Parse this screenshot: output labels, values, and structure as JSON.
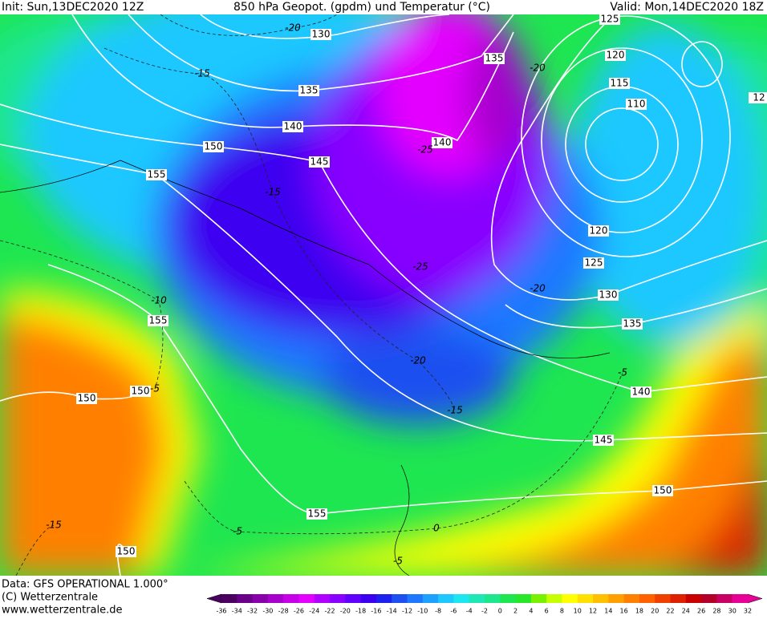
{
  "header": {
    "init": "Init: Sun,13DEC2020 12Z",
    "title": "850 hPa Geopot. (gpdm) und Temperatur (°C)",
    "valid": "Valid: Mon,14DEC2020 18Z"
  },
  "map": {
    "geopotential_labels": [
      130,
      135,
      140,
      150,
      155,
      145,
      140,
      135,
      125,
      120,
      115,
      110,
      120,
      125,
      130,
      135,
      140,
      145,
      150,
      155,
      150,
      155,
      150,
      150,
      12
    ],
    "temperature_labels": [
      -20,
      -15,
      -25,
      -15,
      -25,
      -20,
      -10,
      -20,
      -15,
      -5,
      -5,
      -15,
      -5,
      0,
      -5,
      -20
    ]
  },
  "colorbar": {
    "labels": [
      -36,
      -34,
      -32,
      -30,
      -28,
      -26,
      -24,
      -22,
      -20,
      -18,
      -16,
      -14,
      -12,
      -10,
      -8,
      -6,
      -4,
      -2,
      0,
      2,
      4,
      6,
      8,
      10,
      12,
      14,
      16,
      18,
      20,
      22,
      24,
      26,
      28,
      30,
      32
    ],
    "colors": [
      "#4b0060",
      "#6a0088",
      "#8800aa",
      "#a600cc",
      "#c800e8",
      "#e400ff",
      "#b000ff",
      "#8800ff",
      "#6000ff",
      "#3c00f0",
      "#1e20ee",
      "#1e50f0",
      "#1e78ff",
      "#1ea0ff",
      "#1ec8ff",
      "#1ee6f0",
      "#1ee6b4",
      "#1ee68c",
      "#1ee650",
      "#28e628",
      "#78f000",
      "#c8ff00",
      "#ffff00",
      "#ffe000",
      "#ffc000",
      "#ffa000",
      "#ff8000",
      "#ff6000",
      "#f04000",
      "#dc2000",
      "#c80000",
      "#b40028",
      "#c80064",
      "#e60096"
    ]
  },
  "footer": {
    "data": "Data: GFS OPERATIONAL 1.000°",
    "copyright": "(C) Wetterzentrale",
    "url": "www.wetterzentrale.de"
  }
}
